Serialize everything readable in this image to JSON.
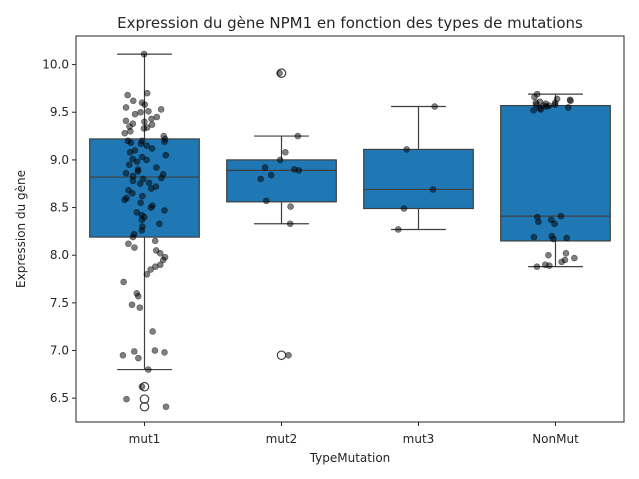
{
  "chart_data": {
    "type": "box",
    "title": "Expression du gène NPM1 en fonction des types de mutations",
    "xlabel": "TypeMutation",
    "ylabel": "Expression du gène",
    "categories": [
      "mut1",
      "mut2",
      "mut3",
      "NonMut"
    ],
    "ylim": [
      6.25,
      10.3
    ],
    "yticks": [
      6.5,
      7.0,
      7.5,
      8.0,
      8.5,
      9.0,
      9.5,
      10.0
    ],
    "ytick_labels": [
      "6.5",
      "7.0",
      "7.5",
      "8.0",
      "8.5",
      "9.0",
      "9.5",
      "10.0"
    ],
    "box_color": "#1f77b4",
    "point_color": "#000000",
    "boxes": [
      {
        "category": "mut1",
        "whisker_low": 6.8,
        "q1": 8.19,
        "median": 8.82,
        "q3": 9.22,
        "whisker_high": 10.11,
        "outliers": [
          6.62,
          6.49,
          6.41
        ]
      },
      {
        "category": "mut2",
        "whisker_low": 8.33,
        "q1": 8.56,
        "median": 8.89,
        "q3": 9.0,
        "whisker_high": 9.25,
        "outliers": [
          9.91,
          6.95
        ]
      },
      {
        "category": "mut3",
        "whisker_low": 8.27,
        "q1": 8.49,
        "median": 8.69,
        "q3": 9.11,
        "whisker_high": 9.56,
        "outliers": []
      },
      {
        "category": "NonMut",
        "whisker_low": 7.88,
        "q1": 8.15,
        "median": 8.41,
        "q3": 9.57,
        "whisker_high": 9.69,
        "outliers": []
      }
    ],
    "points": [
      {
        "category": "mut1",
        "values": [
          10.11,
          9.7,
          9.68,
          9.62,
          9.6,
          9.58,
          9.55,
          9.53,
          9.51,
          9.5,
          9.48,
          9.45,
          9.43,
          9.41,
          9.4,
          9.38,
          9.37,
          9.35,
          9.34,
          9.33,
          9.3,
          9.28,
          9.25,
          9.22,
          9.2,
          9.2,
          9.19,
          9.18,
          9.17,
          9.15,
          9.12,
          9.1,
          9.08,
          9.05,
          9.03,
          9.01,
          9.0,
          8.98,
          8.95,
          8.92,
          8.9,
          8.88,
          8.86,
          8.85,
          8.83,
          8.81,
          8.8,
          8.78,
          8.76,
          8.75,
          8.72,
          8.7,
          8.68,
          8.65,
          8.62,
          8.6,
          8.58,
          8.55,
          8.52,
          8.5,
          8.47,
          8.45,
          8.42,
          8.4,
          8.37,
          8.33,
          8.3,
          8.26,
          8.22,
          8.19,
          8.15,
          8.12,
          8.08,
          8.05,
          8.02,
          7.98,
          7.95,
          7.9,
          7.88,
          7.85,
          7.8,
          7.72,
          7.6,
          7.57,
          7.48,
          7.45,
          7.2,
          7.0,
          6.99,
          6.98,
          6.95,
          6.92,
          6.8,
          6.62,
          6.49,
          6.41
        ]
      },
      {
        "category": "mut2",
        "values": [
          9.91,
          9.25,
          9.08,
          9.0,
          8.92,
          8.9,
          8.89,
          8.84,
          8.8,
          8.57,
          8.51,
          8.33,
          6.95
        ]
      },
      {
        "category": "mut3",
        "values": [
          9.56,
          9.11,
          8.69,
          8.49,
          8.27
        ]
      },
      {
        "category": "NonMut",
        "values": [
          9.69,
          9.66,
          9.64,
          9.63,
          9.62,
          9.61,
          9.6,
          9.6,
          9.59,
          9.58,
          9.58,
          9.57,
          9.57,
          9.56,
          9.55,
          9.54,
          9.53,
          9.52,
          8.41,
          8.4,
          8.37,
          8.35,
          8.33,
          8.2,
          8.19,
          8.18,
          8.17,
          8.02,
          8.0,
          7.97,
          7.95,
          7.93,
          7.9,
          7.89,
          7.88
        ]
      }
    ]
  }
}
